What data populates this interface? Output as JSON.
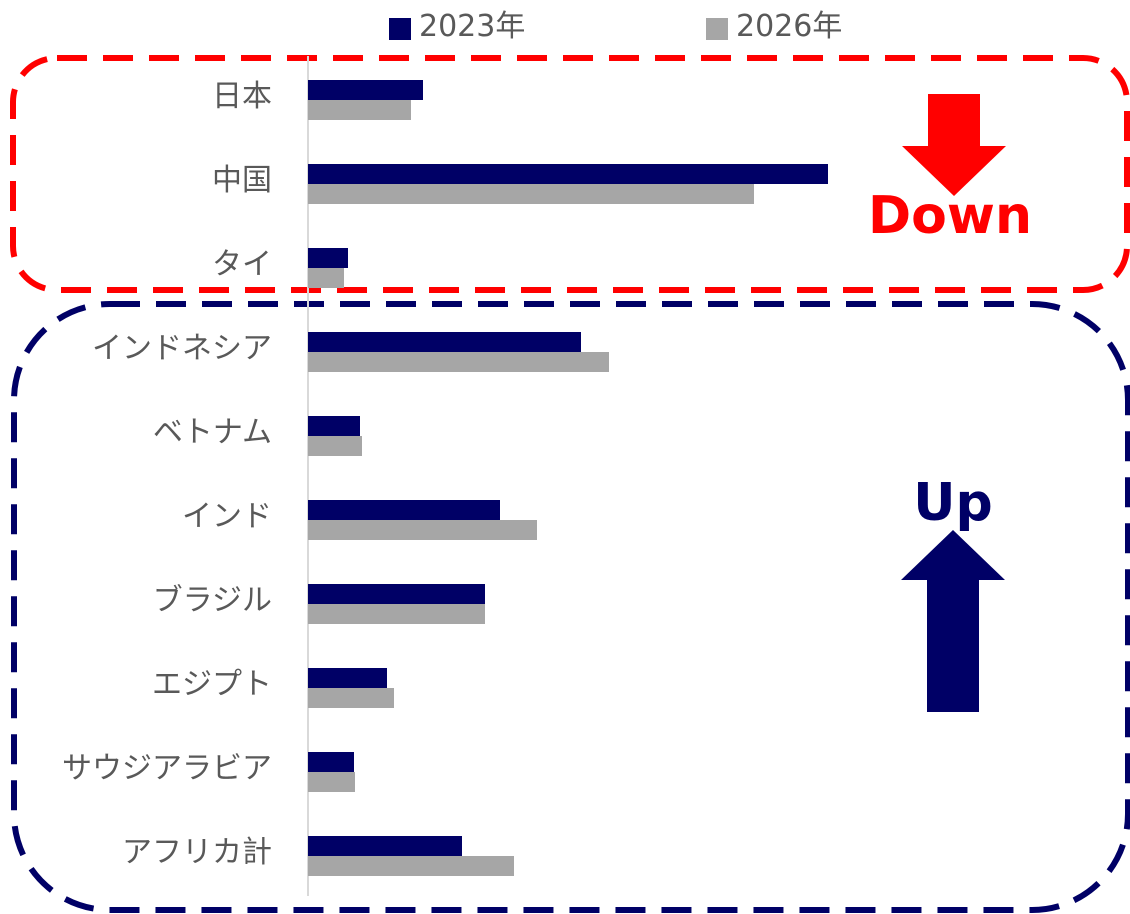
{
  "chart_data": {
    "type": "bar",
    "orientation": "horizontal",
    "categories": [
      "日本",
      "中国",
      "タイ",
      "インドネシア",
      "ベトナム",
      "インド",
      "ブラジル",
      "エジプト",
      "サウジアラビア",
      "アフリカ計"
    ],
    "series": [
      {
        "name": "2023年",
        "color": "#000066",
        "values": [
          11.5,
          52.0,
          4.0,
          27.3,
          5.2,
          19.2,
          17.7,
          7.9,
          4.6,
          15.4
        ]
      },
      {
        "name": "2026年",
        "color": "#a6a6a6",
        "values": [
          10.3,
          44.6,
          3.6,
          30.1,
          5.4,
          22.9,
          17.7,
          8.6,
          4.7,
          20.6
        ]
      }
    ],
    "xlim": [
      0,
      80
    ],
    "grid": false,
    "legend_position": "top",
    "annotations": {
      "down_label": "Down",
      "up_label": "Up",
      "down_color": "#ff0000",
      "up_color": "#000066"
    }
  }
}
